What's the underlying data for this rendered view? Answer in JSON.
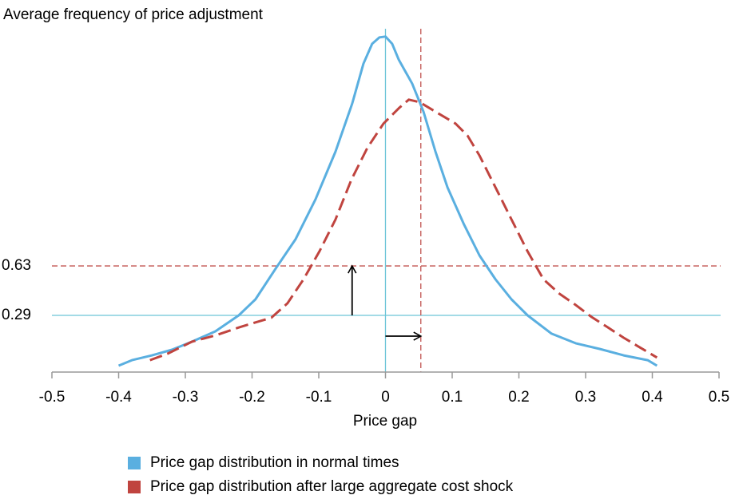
{
  "chart_data": {
    "type": "line",
    "title": "Average frequency of price adjustment",
    "xlabel": "Price gap",
    "xlim": [
      -0.5,
      0.5
    ],
    "xticks": [
      -0.5,
      -0.4,
      -0.3,
      -0.2,
      -0.1,
      0,
      0.1,
      0.2,
      0.3,
      0.4,
      0.5
    ],
    "ylim": [
      -0.1,
      2.3
    ],
    "yticks": [
      0.29,
      0.63
    ],
    "ytick_line_colors": [
      "#6cc5d8",
      "#c0504d"
    ],
    "ytick_line_dashed": [
      false,
      true
    ],
    "vlines": [
      {
        "x": 0,
        "color": "#6cc5d8",
        "dashed": false
      },
      {
        "x": 0.053,
        "color": "#c0504d",
        "dashed": true
      }
    ],
    "arrows": [
      {
        "x": [
          -0.05,
          -0.05
        ],
        "y": [
          0.29,
          0.63
        ]
      },
      {
        "x": [
          0,
          0.053
        ],
        "y": [
          0.147,
          0.147
        ]
      }
    ],
    "series": [
      {
        "name": "Price gap distribution in normal times",
        "color": "#5aafe0",
        "dashed": false,
        "x": [
          -0.4,
          -0.38,
          -0.35,
          -0.32,
          -0.29,
          -0.255,
          -0.22,
          -0.195,
          -0.165,
          -0.135,
          -0.105,
          -0.075,
          -0.05,
          -0.033,
          -0.02,
          -0.009,
          0,
          0.01,
          0.02,
          0.04,
          0.057,
          0.075,
          0.093,
          0.117,
          0.141,
          0.165,
          0.189,
          0.213,
          0.249,
          0.285,
          0.321,
          0.357,
          0.393,
          0.407
        ],
        "values": [
          -0.056,
          -0.018,
          0.015,
          0.054,
          0.109,
          0.18,
          0.29,
          0.4,
          0.609,
          0.812,
          1.087,
          1.416,
          1.746,
          2.021,
          2.158,
          2.202,
          2.208,
          2.158,
          2.048,
          1.884,
          1.691,
          1.416,
          1.169,
          0.922,
          0.702,
          0.537,
          0.4,
          0.29,
          0.164,
          0.098,
          0.059,
          0.015,
          -0.018,
          -0.056
        ]
      },
      {
        "name": "Price gap distribution after large aggregate cost shock",
        "color": "#c0443f",
        "dashed": true,
        "x": [
          -0.353,
          -0.327,
          -0.29,
          -0.254,
          -0.219,
          -0.171,
          -0.147,
          -0.123,
          -0.099,
          -0.075,
          -0.051,
          -0.027,
          -0.003,
          0.021,
          0.035,
          0.051,
          0.075,
          0.105,
          0.123,
          0.141,
          0.165,
          0.189,
          0.213,
          0.237,
          0.261,
          0.285,
          0.309,
          0.333,
          0.357,
          0.381,
          0.407
        ],
        "values": [
          -0.018,
          0.026,
          0.109,
          0.153,
          0.208,
          0.274,
          0.373,
          0.537,
          0.73,
          0.949,
          1.224,
          1.444,
          1.609,
          1.719,
          1.774,
          1.757,
          1.691,
          1.609,
          1.526,
          1.389,
          1.169,
          0.949,
          0.73,
          0.537,
          0.438,
          0.362,
          0.279,
          0.208,
          0.136,
          0.071,
          0
        ]
      }
    ]
  }
}
